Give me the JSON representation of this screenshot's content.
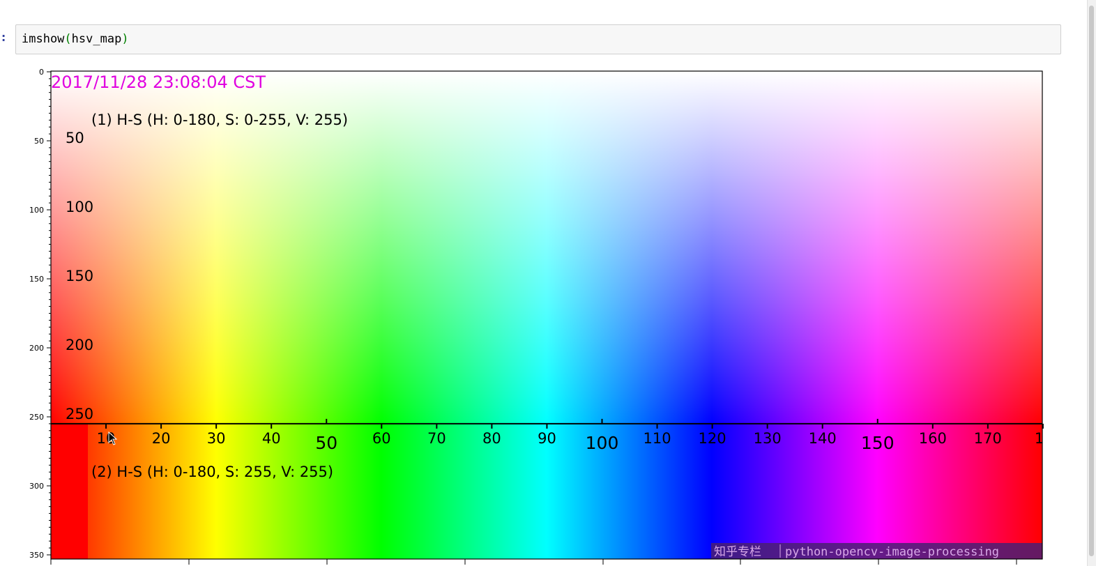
{
  "cell": {
    "prompt": ":",
    "code_func": "imshow",
    "code_open": "(",
    "code_arg": "hsv_map",
    "code_close": ")"
  },
  "image": {
    "timestamp": "2017/11/28 23:08:04 CST",
    "caption_1": "(1) H-S (H: 0-180, S: 0-255, V: 255)",
    "caption_2": "(2) H-S (H: 0-180, S: 255, V: 255)",
    "s_scale_labels": [
      "50",
      "100",
      "150",
      "200",
      "250"
    ],
    "h_scale_labels": [
      "10",
      "20",
      "30",
      "40",
      "50",
      "60",
      "70",
      "80",
      "90",
      "100",
      "110",
      "120",
      "130",
      "140",
      "150",
      "160",
      "170",
      "1"
    ],
    "watermark_cn": "知乎专栏",
    "watermark_en": "python-opencv-image-processing"
  },
  "chart_data": {
    "type": "heatmap",
    "title": "",
    "xlabel": "",
    "ylabel": "",
    "ylim": [
      355,
      0
    ],
    "yticks": [
      0,
      50,
      100,
      150,
      200,
      250,
      300,
      350
    ],
    "ytick_labels": [
      "0",
      "50",
      "100",
      "150",
      "200",
      "250",
      "300",
      "350"
    ],
    "grid": false,
    "colors": {
      "hue_stops": [
        "#ff0000",
        "#ffff00",
        "#00ff00",
        "#00ffff",
        "#0000ff",
        "#ff00ff",
        "#ff0000"
      ]
    }
  }
}
